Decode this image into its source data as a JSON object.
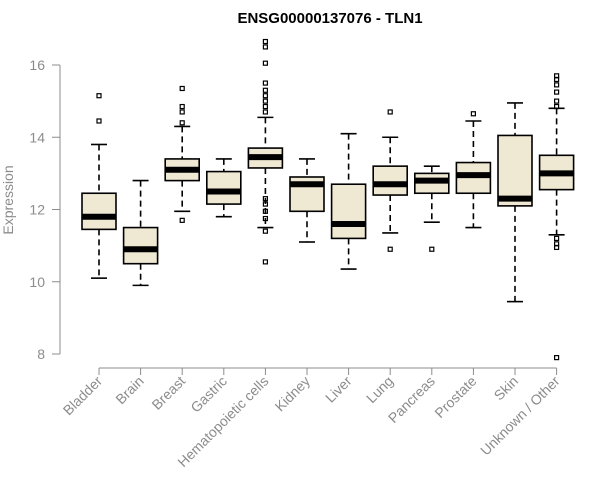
{
  "chart_data": {
    "type": "boxplot",
    "title": "ENSG00000137076 - TLN1",
    "xlabel": "",
    "ylabel": "Expression",
    "ylim": [
      8,
      16
    ],
    "yticks": [
      8,
      10,
      12,
      14,
      16
    ],
    "categories": [
      "Bladder",
      "Brain",
      "Breast",
      "Gastric",
      "Hematopoietic cells",
      "Kidney",
      "Liver",
      "Lung",
      "Pancreas",
      "Prostate",
      "Skin",
      "Unknown / Other"
    ],
    "boxes": [
      {
        "name": "Bladder",
        "lower_whisker": 10.1,
        "q1": 11.45,
        "median": 11.8,
        "q3": 12.45,
        "upper_whisker": 13.8,
        "outliers": [
          14.45,
          15.15
        ]
      },
      {
        "name": "Brain",
        "lower_whisker": 9.9,
        "q1": 10.5,
        "median": 10.9,
        "q3": 11.5,
        "upper_whisker": 12.8,
        "outliers": []
      },
      {
        "name": "Breast",
        "lower_whisker": 11.95,
        "q1": 12.8,
        "median": 13.1,
        "q3": 13.4,
        "upper_whisker": 14.3,
        "outliers": [
          11.7,
          14.4,
          14.7,
          14.85,
          15.35
        ]
      },
      {
        "name": "Gastric",
        "lower_whisker": 11.8,
        "q1": 12.15,
        "median": 12.5,
        "q3": 13.05,
        "upper_whisker": 13.4,
        "outliers": []
      },
      {
        "name": "Hematopoietic cells",
        "lower_whisker": 11.5,
        "q1": 13.15,
        "median": 13.45,
        "q3": 13.7,
        "upper_whisker": 14.55,
        "outliers": [
          10.55,
          11.4,
          11.75,
          11.95,
          12.15,
          12.3,
          14.7,
          14.85,
          15.0,
          15.15,
          15.3,
          15.5,
          16.05,
          16.5,
          16.65
        ]
      },
      {
        "name": "Kidney",
        "lower_whisker": 11.1,
        "q1": 11.95,
        "median": 12.7,
        "q3": 12.9,
        "upper_whisker": 13.4,
        "outliers": []
      },
      {
        "name": "Liver",
        "lower_whisker": 10.35,
        "q1": 11.2,
        "median": 11.6,
        "q3": 12.7,
        "upper_whisker": 14.1,
        "outliers": []
      },
      {
        "name": "Lung",
        "lower_whisker": 11.35,
        "q1": 12.4,
        "median": 12.7,
        "q3": 13.2,
        "upper_whisker": 14.0,
        "outliers": [
          10.9,
          14.7
        ]
      },
      {
        "name": "Pancreas",
        "lower_whisker": 11.65,
        "q1": 12.45,
        "median": 12.8,
        "q3": 13.0,
        "upper_whisker": 13.2,
        "outliers": [
          10.9
        ]
      },
      {
        "name": "Prostate",
        "lower_whisker": 11.5,
        "q1": 12.45,
        "median": 12.95,
        "q3": 13.3,
        "upper_whisker": 14.45,
        "outliers": [
          14.65
        ]
      },
      {
        "name": "Skin",
        "lower_whisker": 9.45,
        "q1": 12.1,
        "median": 12.3,
        "q3": 14.05,
        "upper_whisker": 14.95,
        "outliers": []
      },
      {
        "name": "Unknown / Other",
        "lower_whisker": 11.3,
        "q1": 12.55,
        "median": 13.0,
        "q3": 13.5,
        "upper_whisker": 14.8,
        "outliers": [
          7.9,
          10.95,
          11.05,
          11.2,
          14.85,
          15.0,
          15.25,
          15.45,
          15.6,
          15.7
        ]
      }
    ],
    "grid": false,
    "legend": "none"
  },
  "colors": {
    "box_fill": "#efe8d2",
    "axis": "#8c8c8c",
    "stroke": "#000000"
  }
}
